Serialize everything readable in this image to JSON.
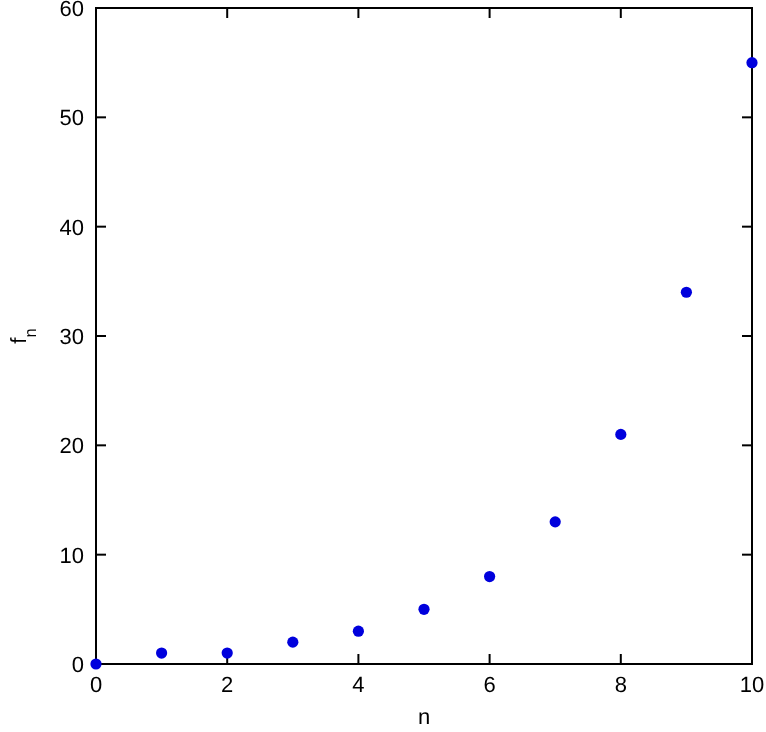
{
  "chart_data": {
    "type": "scatter",
    "xlabel": "n",
    "ylabel": "f$_{n}$",
    "x": [
      0,
      1,
      2,
      3,
      4,
      5,
      6,
      7,
      8,
      9,
      10
    ],
    "series": [
      {
        "color": "#0000dd",
        "values": [
          0,
          1,
          1,
          2,
          3,
          5,
          8,
          13,
          21,
          34,
          55
        ]
      }
    ],
    "xlim": [
      0,
      10
    ],
    "xticks": [
      0,
      2,
      4,
      6,
      8,
      10
    ],
    "ylim": [
      0,
      60
    ],
    "yticks": [
      0,
      10,
      20,
      30,
      40,
      50,
      60
    ],
    "marker": "circle",
    "grid": false
  }
}
